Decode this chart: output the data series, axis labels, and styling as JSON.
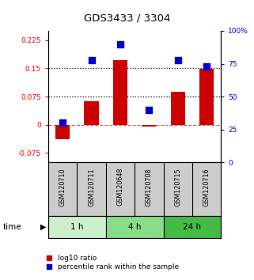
{
  "title": "GDS3433 / 3304",
  "categories": [
    "GSM120710",
    "GSM120711",
    "GSM120648",
    "GSM120708",
    "GSM120715",
    "GSM120716"
  ],
  "log10_ratio": [
    -0.038,
    0.063,
    0.173,
    -0.005,
    0.088,
    0.148
  ],
  "percentile_rank": [
    0.3,
    0.78,
    0.9,
    0.4,
    0.78,
    0.73
  ],
  "time_groups": [
    {
      "label": "1 h",
      "start": 0,
      "end": 2,
      "color": "#ccf0cc"
    },
    {
      "label": "4 h",
      "start": 2,
      "end": 4,
      "color": "#88dd88"
    },
    {
      "label": "24 h",
      "start": 4,
      "end": 6,
      "color": "#44bb44"
    }
  ],
  "ylim_left": [
    -0.1,
    0.25
  ],
  "ylim_right": [
    0,
    1.0
  ],
  "yticks_left": [
    -0.075,
    0,
    0.075,
    0.15,
    0.225
  ],
  "yticks_right": [
    0,
    0.25,
    0.5,
    0.75,
    1.0
  ],
  "ytick_labels_right": [
    "0",
    "25",
    "50",
    "75",
    "100%"
  ],
  "ytick_labels_left": [
    "-0.075",
    "0",
    "0.075",
    "0.15",
    "0.225"
  ],
  "hlines_dotted": [
    0.075,
    0.15
  ],
  "hline_dashed": 0,
  "bar_color": "#cc0000",
  "dot_color": "#0000cc",
  "bar_width": 0.5,
  "dot_size": 28,
  "legend_labels": [
    "log10 ratio",
    "percentile rank within the sample"
  ],
  "legend_colors": [
    "#cc0000",
    "#0000cc"
  ],
  "time_label": "time"
}
